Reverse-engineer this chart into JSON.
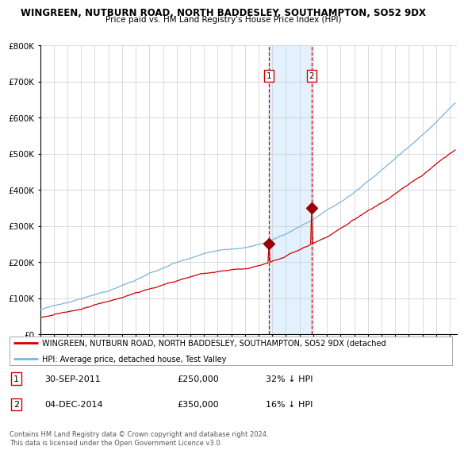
{
  "title1": "WINGREEN, NUTBURN ROAD, NORTH BADDESLEY, SOUTHAMPTON, SO52 9DX",
  "title2": "Price paid vs. HM Land Registry's House Price Index (HPI)",
  "legend_line1": "WINGREEN, NUTBURN ROAD, NORTH BADDESLEY, SOUTHAMPTON, SO52 9DX (detached",
  "legend_line2": "HPI: Average price, detached house, Test Valley",
  "annotation1_label": "1",
  "annotation1_date": "30-SEP-2011",
  "annotation1_price": "£250,000",
  "annotation1_hpi": "32% ↓ HPI",
  "annotation2_label": "2",
  "annotation2_date": "04-DEC-2014",
  "annotation2_price": "£350,000",
  "annotation2_hpi": "16% ↓ HPI",
  "ylim": [
    0,
    800000
  ],
  "xlim_start": 1995,
  "xlim_end": 2025.5,
  "hpi_color": "#7ab6d9",
  "price_color": "#cc0000",
  "bg_color": "#ffffff",
  "grid_color": "#cccccc",
  "shade_color": "#ddeeff",
  "marker_color": "#990000",
  "dashed_color": "#cc0000",
  "sale1_year": 2011.75,
  "sale2_year": 2014.92,
  "sale1_price": 250000,
  "sale2_price": 350000,
  "footnote": "Contains HM Land Registry data © Crown copyright and database right 2024.\nThis data is licensed under the Open Government Licence v3.0."
}
